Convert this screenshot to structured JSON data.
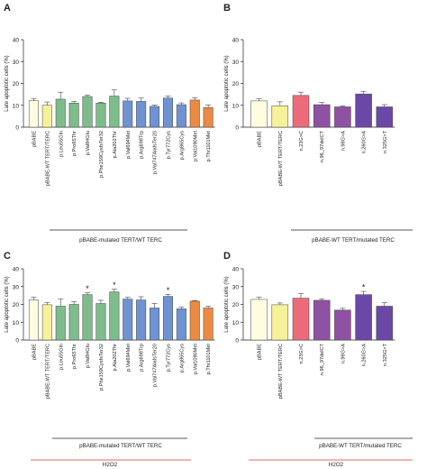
{
  "chart_data": [
    {
      "panel": "A",
      "type": "bar",
      "ylabel": "Late apoptotic cells (%)",
      "ylim": [
        0,
        40
      ],
      "yticks": [
        0,
        10,
        20,
        30,
        40
      ],
      "categories": [
        "pBABE",
        "pBABE-WT TERT/TERC",
        "p.Leu55Gln",
        "p.Pro65Thr",
        "p.Val84Glu",
        "p.Phe159CysfsTer32",
        "p.Ala202Thr",
        "p.Val694Met",
        "p.Arg698Trp",
        "p.Val747AlafsTer20",
        "p.Tyr772Cys",
        "p.Arg865Cys",
        "p.Val1090Met",
        "p.Thr1101Met"
      ],
      "values": [
        12.1,
        10.0,
        12.8,
        11.0,
        14.0,
        11.0,
        14.2,
        12.0,
        11.8,
        9.5,
        13.3,
        10.3,
        12.4,
        9.0
      ],
      "errors": [
        1.0,
        1.5,
        3.2,
        0.8,
        0.6,
        0.4,
        2.8,
        1.2,
        1.5,
        0.6,
        0.9,
        0.8,
        1.0,
        1.2
      ],
      "colors": [
        "#fefde0",
        "#f7f29a",
        "#7dbd8c",
        "#7dbd8c",
        "#7dbd8c",
        "#7dbd8c",
        "#7dbd8c",
        "#6e93d2",
        "#6e93d2",
        "#6e93d2",
        "#6e93d2",
        "#6e93d2",
        "#ec8a43",
        "#ec8a43"
      ],
      "significant": [],
      "group_label": "pBABE-mutated TERT/WT TERC"
    },
    {
      "panel": "B",
      "type": "bar",
      "ylabel": "Late apoptotic cells (%)",
      "ylim": [
        0,
        40
      ],
      "yticks": [
        0,
        10,
        20,
        30,
        40
      ],
      "categories": [
        "pBABE",
        "pBABE-WT TERT/TERC",
        "n.23G>C",
        "n.96_97delCT",
        "n.98G>A",
        "n.260G>A",
        "n.325G>T"
      ],
      "values": [
        12.0,
        9.8,
        14.5,
        10.3,
        9.3,
        15.2,
        9.3
      ],
      "errors": [
        1.0,
        1.8,
        1.5,
        1.0,
        0.5,
        1.2,
        1.0
      ],
      "colors": [
        "#fefde0",
        "#f7f29a",
        "#ec6b7a",
        "#8e51a3",
        "#8e51a3",
        "#6c48a6",
        "#6c48a6"
      ],
      "significant": [],
      "group_label": "pBABE-WT TERT/mutated TERC"
    },
    {
      "panel": "C",
      "type": "bar",
      "ylabel": "Late apoptotic cells (%)",
      "ylim": [
        0,
        40
      ],
      "yticks": [
        0,
        10,
        20,
        30,
        40
      ],
      "categories": [
        "pBABE",
        "pBABE-WT TERT/TERC",
        "p.Leu55Gln",
        "p.Pro65Thr",
        "p.Val84Glu",
        "p.Phe159CysfsTer32",
        "p.Ala202Thr",
        "p.Val694Met",
        "p.Arg698Trp",
        "p.Val747AlafsTer20",
        "p.Tyr772Cys",
        "p.Arg865Cys",
        "p.Val1090Met",
        "p.Thr1101Met"
      ],
      "values": [
        22.5,
        19.8,
        19.0,
        20.0,
        25.5,
        20.5,
        27.0,
        23.0,
        22.5,
        18.0,
        24.5,
        17.5,
        21.8,
        18.0
      ],
      "errors": [
        1.5,
        1.2,
        4.0,
        1.5,
        1.0,
        1.8,
        1.5,
        1.0,
        1.8,
        2.5,
        1.0,
        1.0,
        0.4,
        1.0
      ],
      "colors": [
        "#fefde0",
        "#f7f29a",
        "#7dbd8c",
        "#7dbd8c",
        "#7dbd8c",
        "#7dbd8c",
        "#7dbd8c",
        "#6e93d2",
        "#6e93d2",
        "#6e93d2",
        "#6e93d2",
        "#6e93d2",
        "#ec8a43",
        "#ec8a43"
      ],
      "significant": [
        "p.Val84Glu",
        "p.Ala202Thr",
        "p.Tyr772Cys"
      ],
      "group_label": "pBABE-mutated TERT/WT TERC",
      "treatment_label": "H2O2"
    },
    {
      "panel": "D",
      "type": "bar",
      "ylabel": "Late apoptotic cells (%)",
      "ylim": [
        0,
        40
      ],
      "yticks": [
        0,
        10,
        20,
        30,
        40
      ],
      "categories": [
        "pBABE",
        "pBABE-WT TERT/TERC",
        "n.23G>C",
        "n.96_97delCT",
        "n.98G>A",
        "n.260G>A",
        "n.325G>T"
      ],
      "values": [
        22.8,
        19.8,
        23.5,
        22.3,
        16.8,
        25.5,
        19.0
      ],
      "errors": [
        1.2,
        1.0,
        2.5,
        0.8,
        1.0,
        1.8,
        2.0
      ],
      "colors": [
        "#fefde0",
        "#f7f29a",
        "#ec6b7a",
        "#8e51a3",
        "#8e51a3",
        "#6c48a6",
        "#6c48a6"
      ],
      "significant": [
        "n.260G>A"
      ],
      "group_label": "pBABE-WT TERT/mutated TERC",
      "treatment_label": "H2O2"
    }
  ]
}
